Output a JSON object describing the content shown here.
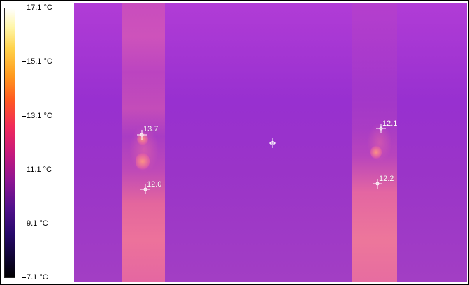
{
  "scale": {
    "ticks": [
      "17.1 °C",
      "15.1 °C",
      "13.1 °C",
      "11.1 °C",
      "9.1 °C",
      "7.1 °C"
    ],
    "colors": {
      "max": "#ffffff",
      "mid": "#c6197c",
      "min": "#000000"
    }
  },
  "thermal": {
    "background_color": "#9a34c8",
    "markers": [
      {
        "label": "13.7",
        "icon": "crosshair-icon"
      },
      {
        "label": "12.0",
        "icon": "crosshair-icon"
      },
      {
        "label": "12.1",
        "icon": "crosshair-icon"
      },
      {
        "label": "12.2",
        "icon": "crosshair-icon"
      },
      {
        "label": "",
        "icon": "center-crosshair-icon"
      }
    ]
  }
}
